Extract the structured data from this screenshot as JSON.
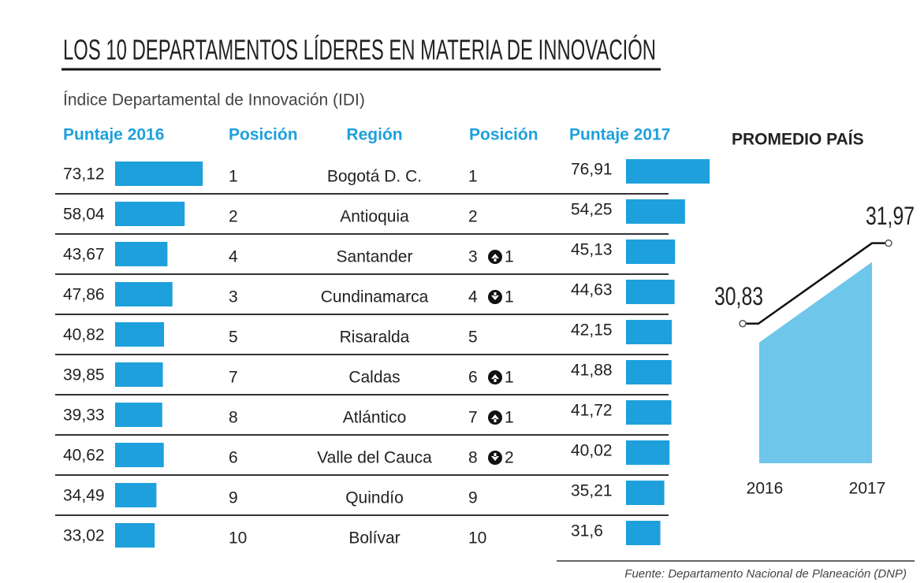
{
  "title": "LOS 10 DEPARTAMENTOS LÍDERES EN MATERIA DE INNOVACIÓN",
  "subtitle": "Índice Departamental de Innovación (IDI)",
  "table": {
    "headers": [
      "Puntaje 2016",
      "Posición",
      "Región",
      "Posición",
      "Puntaje 2017"
    ],
    "bar_color": "#1ea0dc",
    "rows": [
      {
        "score_2016": 73.12,
        "score_2016_label": "73,12",
        "position_2016": 1,
        "region": "Bogotá D. C.",
        "position_2017": 1,
        "score_2017": 76.91,
        "score_2017_label": "76,91"
      },
      {
        "score_2016": 58.04,
        "score_2016_label": "58,04",
        "position_2016": 2,
        "region": "Antioquia",
        "position_2017": 2,
        "score_2017": 54.25,
        "score_2017_label": "54,25"
      },
      {
        "score_2016": 43.67,
        "score_2016_label": "43,67",
        "position_2016": 4,
        "region": "Santander",
        "position_2017": 3,
        "change": 1,
        "change_direction": "up",
        "score_2017": 45.13,
        "score_2017_label": "45,13"
      },
      {
        "score_2016": 47.86,
        "score_2016_label": "47,86",
        "position_2016": 3,
        "region": "Cundinamarca",
        "position_2017": 4,
        "change": 1,
        "change_direction": "down",
        "score_2017": 44.63,
        "score_2017_label": "44,63"
      },
      {
        "score_2016": 40.82,
        "score_2016_label": "40,82",
        "position_2016": 5,
        "region": "Risaralda",
        "position_2017": 5,
        "score_2017": 42.15,
        "score_2017_label": "42,15"
      },
      {
        "score_2016": 39.85,
        "score_2016_label": "39,85",
        "position_2016": 7,
        "region": "Caldas",
        "position_2017": 6,
        "change": 1,
        "change_direction": "up",
        "score_2017": 41.88,
        "score_2017_label": "41,88"
      },
      {
        "score_2016": 39.33,
        "score_2016_label": "39,33",
        "position_2016": 8,
        "region": "Atlántico",
        "position_2017": 7,
        "change": 1,
        "change_direction": "up",
        "score_2017": 41.72,
        "score_2017_label": "41,72"
      },
      {
        "score_2016": 40.62,
        "score_2016_label": "40,62",
        "position_2016": 6,
        "region": "Valle del Cauca",
        "position_2017": 8,
        "change": 2,
        "change_direction": "down",
        "score_2017": 40.02,
        "score_2017_label": "40,02"
      },
      {
        "score_2016": 34.49,
        "score_2016_label": "34,49",
        "position_2016": 9,
        "region": "Quindío",
        "position_2017": 9,
        "score_2017": 35.21,
        "score_2017_label": "35,21"
      },
      {
        "score_2016": 33.02,
        "score_2016_label": "33,02",
        "position_2016": 10,
        "region": "Bolívar",
        "position_2017": 10,
        "score_2017": 31.6,
        "score_2017_label": "31,6"
      }
    ]
  },
  "average": {
    "title": "PROMEDIO PAÍS",
    "years": [
      2016,
      2017
    ],
    "values": [
      30.83,
      31.97
    ],
    "value_labels": [
      "30,83",
      "31,97"
    ],
    "color": "#6ec6ea"
  },
  "source": "Fuente: Departamento Nacional de Planeación (DNP)"
}
